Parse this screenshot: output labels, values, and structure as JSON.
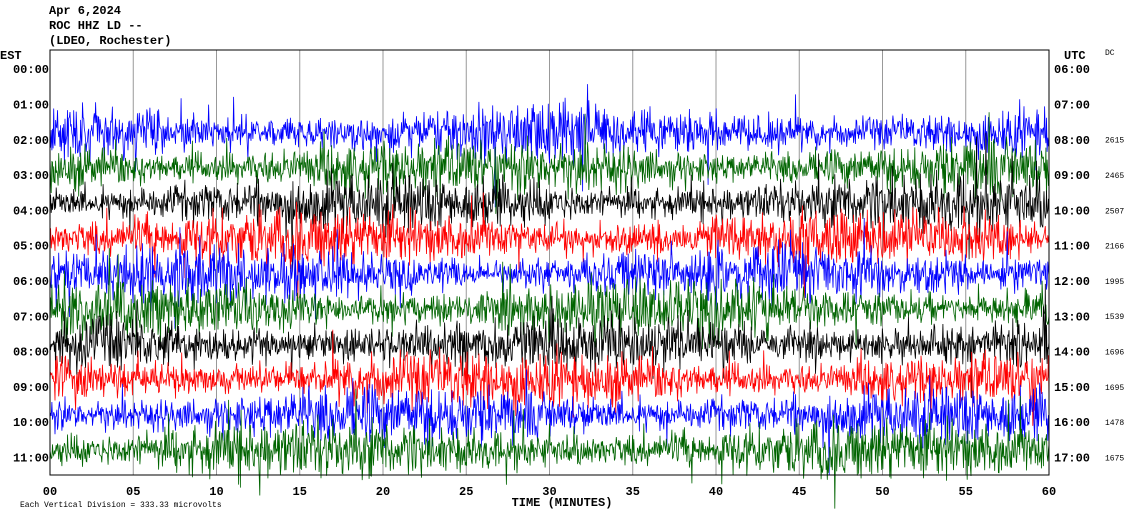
{
  "header": {
    "date": "Apr 6,2024",
    "station": "ROC HHZ LD --",
    "network": "(LDEO, Rochester)"
  },
  "left_axis": {
    "title": "EST",
    "labels": [
      "00:00",
      "01:00",
      "02:00",
      "03:00",
      "04:00",
      "05:00",
      "06:00",
      "07:00",
      "08:00",
      "09:00",
      "10:00",
      "11:00"
    ]
  },
  "right_axis": {
    "title": "UTC",
    "labels": [
      "06:00",
      "07:00",
      "08:00",
      "09:00",
      "10:00",
      "11:00",
      "12:00",
      "13:00",
      "14:00",
      "15:00",
      "16:00",
      "17:00"
    ]
  },
  "dc": {
    "title": "DC",
    "values": [
      2615,
      2465,
      2507,
      2166,
      1995,
      1539,
      1696,
      1695,
      1478,
      1675
    ]
  },
  "x_axis": {
    "title": "TIME (MINUTES)",
    "labels": [
      "00",
      "05",
      "10",
      "15",
      "20",
      "25",
      "30",
      "35",
      "40",
      "45",
      "50",
      "55",
      "60"
    ]
  },
  "footer": "Each Vertical Division = 333.33 microvolts"
}
